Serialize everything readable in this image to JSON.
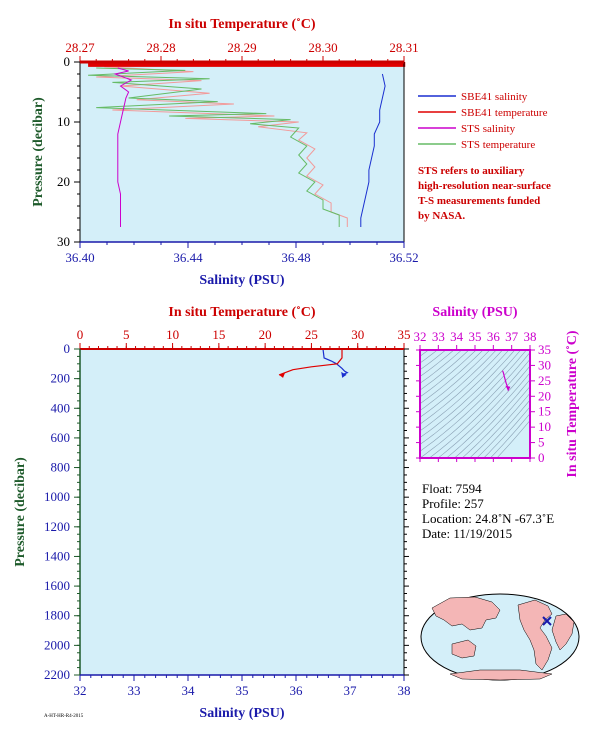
{
  "colors": {
    "plot_bg": "#d4eff9",
    "salinity_axis": "#1a1aaa",
    "temperature_axis": "#cc0000",
    "pressure_axis": "#1d5a2a",
    "ts_axis": "#cc00cc",
    "sbe41_salinity": "#1a2fd0",
    "sbe41_temperature": "#e00000",
    "sts_salinity": "#cc00cc",
    "sts_temperature": "#66bb66",
    "sts_temperature_pink": "#f29a9a"
  },
  "chart_data": [
    {
      "type": "line",
      "panel": "top",
      "top_axis_label": "In situ Temperature (˚C)",
      "bottom_axis_label": "Salinity (PSU)",
      "left_axis_label": "Pressure (decibar)",
      "temp_ticks": [
        "28.27",
        "28.28",
        "28.29",
        "28.30",
        "28.31"
      ],
      "temp_range": [
        28.27,
        28.31
      ],
      "sal_ticks": [
        "36.40",
        "36.44",
        "36.48",
        "36.52"
      ],
      "sal_range": [
        36.4,
        36.52
      ],
      "pres_ticks": [
        "0",
        "10",
        "20",
        "30"
      ],
      "pres_range": [
        0,
        30
      ],
      "legend": [
        "SBE41 salinity",
        "SBE41 temperature",
        "STS salinity",
        "STS temperature"
      ],
      "note": [
        "STS refers to auxiliary",
        "high-resolution near-surface",
        "T-S measurements funded",
        "by NASA."
      ],
      "series": [
        {
          "name": "SBE41 salinity",
          "axis": "salinity",
          "points": [
            [
              36.512,
              2
            ],
            [
              36.513,
              4
            ],
            [
              36.512,
              6
            ],
            [
              36.511,
              8
            ],
            [
              36.511,
              10
            ],
            [
              36.509,
              12
            ],
            [
              36.509,
              14
            ],
            [
              36.508,
              16
            ],
            [
              36.507,
              18
            ],
            [
              36.507,
              20
            ],
            [
              36.506,
              22
            ],
            [
              36.505,
              24
            ],
            [
              36.504,
              26
            ],
            [
              36.504,
              27.5
            ]
          ]
        },
        {
          "name": "SBE41 temperature",
          "axis": "temperature",
          "points": [
            [
              28.271,
              0.6
            ],
            [
              28.31,
              0.6
            ],
            [
              28.31,
              0.2
            ],
            [
              28.271,
              0.2
            ]
          ]
        },
        {
          "name": "STS salinity",
          "axis": "salinity",
          "points": [
            [
              36.414,
              1
            ],
            [
              36.418,
              1.5
            ],
            [
              36.413,
              2
            ],
            [
              36.419,
              3
            ],
            [
              36.415,
              4
            ],
            [
              36.418,
              5
            ],
            [
              36.417,
              6
            ],
            [
              36.416,
              8
            ],
            [
              36.415,
              10
            ],
            [
              36.414,
              12
            ],
            [
              36.414,
              14
            ],
            [
              36.414,
              16
            ],
            [
              36.414,
              18
            ],
            [
              36.414,
              20
            ],
            [
              36.415,
              22
            ],
            [
              36.415,
              24
            ],
            [
              36.415,
              26
            ],
            [
              36.415,
              27.5
            ]
          ]
        },
        {
          "name": "STS temperature",
          "axis": "temperature",
          "points": [
            [
              28.272,
              1
            ],
            [
              28.283,
              1.4
            ],
            [
              28.271,
              2.2
            ],
            [
              28.286,
              2.8
            ],
            [
              28.274,
              3.4
            ],
            [
              28.285,
              4.5
            ],
            [
              28.276,
              6
            ],
            [
              28.287,
              6.6
            ],
            [
              28.272,
              7.6
            ],
            [
              28.293,
              8.6
            ],
            [
              28.281,
              9
            ],
            [
              28.296,
              9.6
            ],
            [
              28.291,
              10.3
            ],
            [
              28.297,
              11
            ],
            [
              28.296,
              12.5
            ],
            [
              28.298,
              14
            ],
            [
              28.297,
              15.5
            ],
            [
              28.298,
              17
            ],
            [
              28.297,
              18.5
            ],
            [
              28.299,
              20
            ],
            [
              28.298,
              21.5
            ],
            [
              28.3,
              23
            ],
            [
              28.3,
              24.5
            ],
            [
              28.302,
              25.5
            ],
            [
              28.302,
              27.5
            ]
          ]
        },
        {
          "name": "STS temperature (pink)",
          "axis": "temperature",
          "points": [
            [
              28.273,
              0.8
            ],
            [
              28.284,
              1.6
            ],
            [
              28.272,
              2.5
            ],
            [
              28.285,
              3.1
            ],
            [
              28.275,
              4
            ],
            [
              28.286,
              5.2
            ],
            [
              28.277,
              6.3
            ],
            [
              28.289,
              7
            ],
            [
              28.274,
              8
            ],
            [
              28.294,
              9
            ],
            [
              28.283,
              9.4
            ],
            [
              28.297,
              10
            ],
            [
              28.292,
              10.8
            ],
            [
              28.298,
              11.8
            ],
            [
              28.297,
              13
            ],
            [
              28.299,
              14.5
            ],
            [
              28.298,
              16
            ],
            [
              28.299,
              17.5
            ],
            [
              28.298,
              19
            ],
            [
              28.3,
              20.5
            ],
            [
              28.299,
              22
            ],
            [
              28.301,
              23.5
            ],
            [
              28.301,
              25
            ],
            [
              28.303,
              26
            ],
            [
              28.303,
              27.5
            ]
          ]
        }
      ]
    },
    {
      "type": "line",
      "panel": "bottom",
      "top_axis_label": "In situ Temperature (˚C)",
      "bottom_axis_label": "Salinity (PSU)",
      "left_axis_label": "Pressure (decibar)",
      "temp_ticks": [
        "0",
        "5",
        "10",
        "15",
        "20",
        "25",
        "30",
        "35"
      ],
      "temp_range": [
        0,
        35
      ],
      "sal_ticks": [
        "32",
        "33",
        "34",
        "35",
        "36",
        "37",
        "38"
      ],
      "sal_range": [
        32,
        38
      ],
      "pres_ticks": [
        "0",
        "200",
        "400",
        "600",
        "800",
        "1000",
        "1200",
        "1400",
        "1600",
        "1800",
        "2000",
        "2200"
      ],
      "pres_range": [
        0,
        2200
      ],
      "series": [
        {
          "name": "salinity",
          "axis": "salinity",
          "points": [
            [
              36.5,
              0
            ],
            [
              36.52,
              60
            ],
            [
              36.65,
              80
            ],
            [
              36.75,
              100
            ],
            [
              36.85,
              130
            ],
            [
              36.9,
              150
            ],
            [
              36.95,
              160
            ],
            [
              36.88,
              170
            ],
            [
              36.93,
              175
            ]
          ]
        },
        {
          "name": "temperature",
          "axis": "temperature",
          "points": [
            [
              28.3,
              0
            ],
            [
              28.3,
              60
            ],
            [
              27.8,
              100
            ],
            [
              25,
              120
            ],
            [
              23,
              140
            ],
            [
              21.5,
              175
            ]
          ]
        }
      ]
    },
    {
      "type": "scatter",
      "panel": "ts",
      "top_axis_label": "Salinity (PSU)",
      "right_axis_label": "In situ Temperature (˚C)",
      "sal_ticks": [
        "32",
        "33",
        "34",
        "35",
        "36",
        "37",
        "38"
      ],
      "sal_range": [
        32,
        38
      ],
      "temp_ticks": [
        "0",
        "5",
        "10",
        "15",
        "20",
        "25",
        "30",
        "35"
      ],
      "temp_range": [
        0,
        35
      ],
      "points": [
        [
          36.5,
          28.3
        ],
        [
          36.55,
          27.6
        ],
        [
          36.6,
          26.4
        ],
        [
          36.65,
          25.2
        ],
        [
          36.7,
          24.2
        ],
        [
          36.75,
          23.4
        ],
        [
          36.78,
          22.6
        ],
        [
          36.82,
          21.8
        ]
      ]
    }
  ],
  "float_info": {
    "float": "Float:  7594",
    "profile": "Profile:  257",
    "location": "Location:  24.8˚N  -67.3˚E",
    "date": "Date:  11/19/2015"
  },
  "footer_code": "A-HT-HR-R4-2015"
}
